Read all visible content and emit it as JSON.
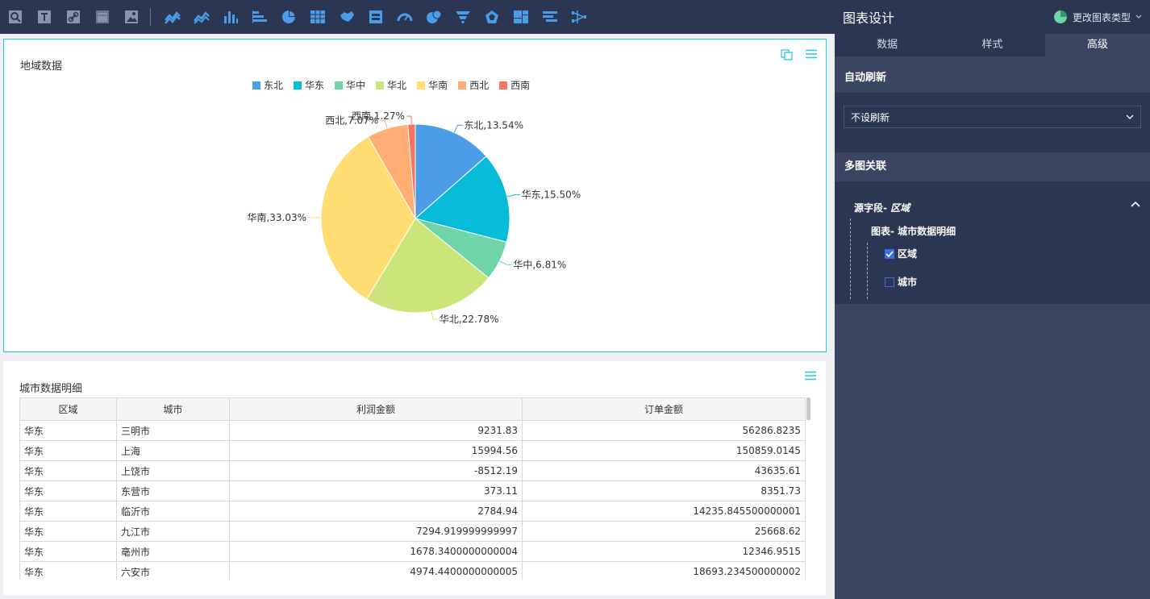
{
  "toolbar": {
    "icons": [
      "query-control-icon",
      "text-icon",
      "link-icon",
      "iframe-icon",
      "image-icon",
      "line-chart-icon",
      "area-chart-icon",
      "bar-chart-icon",
      "horizontal-bar-chart-icon",
      "pie-chart-icon",
      "table-icon",
      "china-map-icon",
      "indicator-card-icon",
      "gauge-icon",
      "bubble-icon",
      "funnel-icon",
      "radar-icon",
      "treemap-icon",
      "ranking-icon",
      "sankey-icon"
    ]
  },
  "pie_panel": {
    "title": "地域数据",
    "chart_data": {
      "type": "pie",
      "title": "地域数据",
      "legend_position": "top",
      "categories": [
        "东北",
        "华东",
        "华中",
        "华北",
        "华南",
        "西北",
        "西南"
      ],
      "values": [
        13.54,
        15.5,
        6.81,
        22.78,
        33.03,
        7.07,
        1.27
      ],
      "colors": [
        "#4a9de6",
        "#06bcd8",
        "#6fd4a7",
        "#cbe57a",
        "#ffdd72",
        "#ffad72",
        "#f7735f"
      ],
      "labels": [
        "东北,13.54%",
        "华东,15.50%",
        "华中,6.81%",
        "华北,22.78%",
        "华南,33.03%",
        "西北,7.07%",
        "西南,1.27%"
      ]
    }
  },
  "table_panel": {
    "title": "城市数据明细",
    "columns": [
      "区域",
      "城市",
      "利润金额",
      "订单金额"
    ],
    "rows": [
      [
        "华东",
        "三明市",
        "9231.83",
        "56286.8235"
      ],
      [
        "华东",
        "上海",
        "15994.56",
        "150859.0145"
      ],
      [
        "华东",
        "上饶市",
        "-8512.19",
        "43635.61"
      ],
      [
        "华东",
        "东营市",
        "373.11",
        "8351.73"
      ],
      [
        "华东",
        "临沂市",
        "2784.94",
        "14235.845500000001"
      ],
      [
        "华东",
        "九江市",
        "7294.919999999997",
        "25668.62"
      ],
      [
        "华东",
        "亳州市",
        "1678.3400000000004",
        "12346.9515"
      ],
      [
        "华东",
        "六安市",
        "4974.4400000000005",
        "18693.234500000002"
      ]
    ]
  },
  "right_panel": {
    "title": "图表设计",
    "change_type_label": "更改图表类型",
    "tabs": [
      "数据",
      "样式",
      "高级"
    ],
    "active_tab": "高级",
    "auto_refresh": {
      "title": "自动刷新",
      "value": "不设刷新"
    },
    "linkage": {
      "title": "多图关联",
      "source_prefix": "源字段-",
      "source_field": "区域",
      "chart_label": "图表- 城市数据明细",
      "options": [
        {
          "label": "区域",
          "checked": true
        },
        {
          "label": "城市",
          "checked": false
        }
      ]
    }
  },
  "colors": {
    "accent": "#27c5e0",
    "dark_bg": "#2b3653",
    "panel_bg": "#3a4561",
    "checkbox": "#3a6ee8"
  }
}
